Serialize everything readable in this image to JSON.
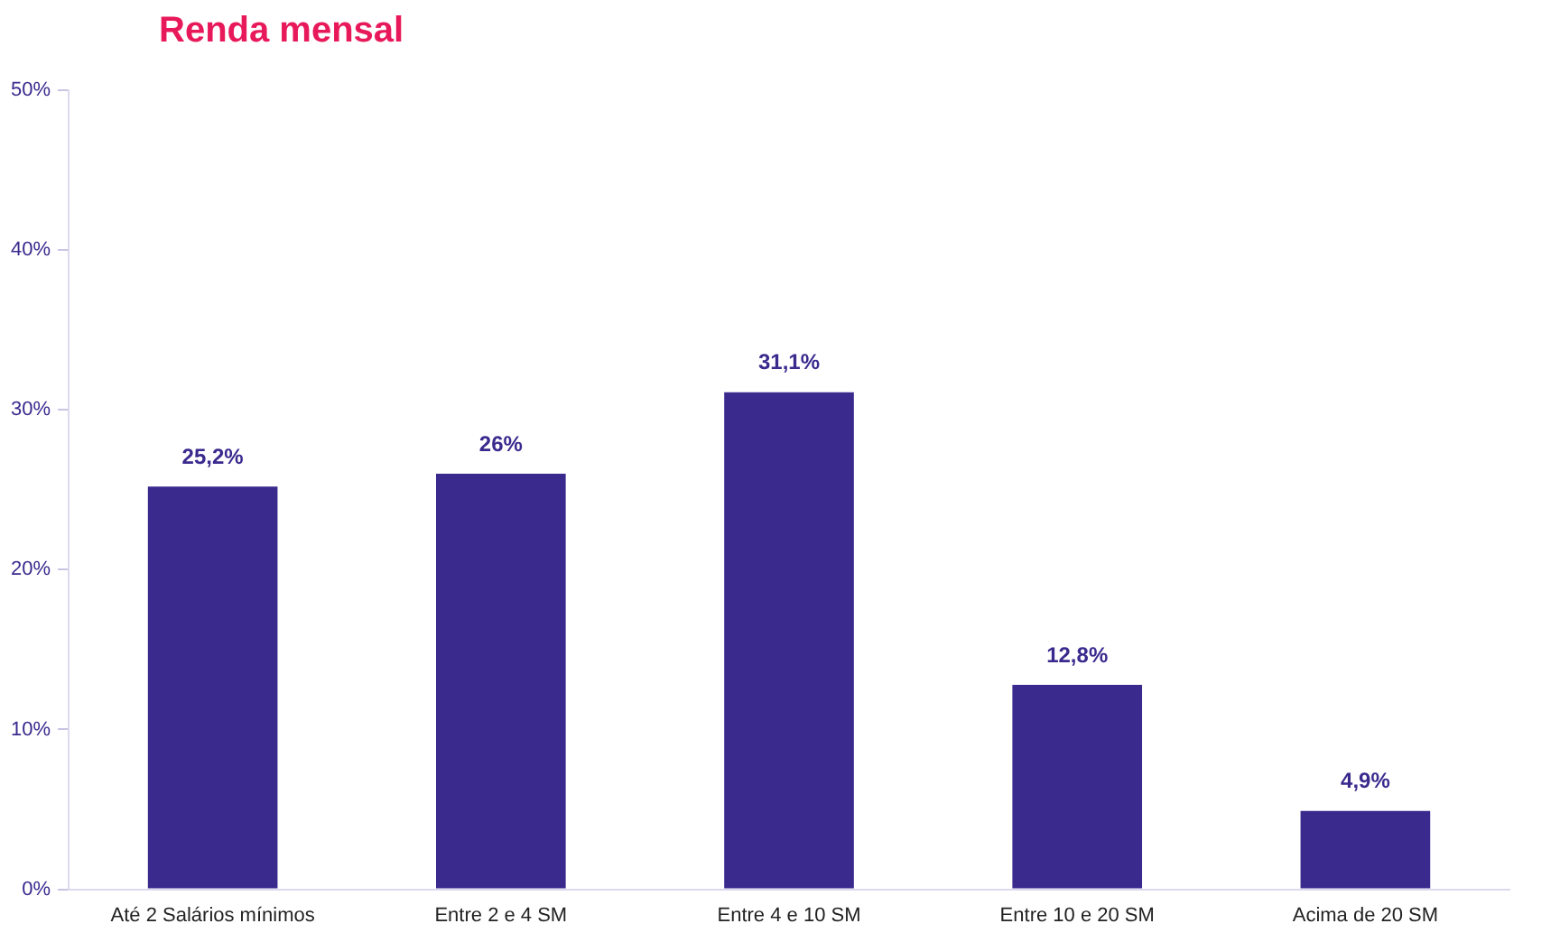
{
  "chart_data": {
    "type": "bar",
    "title": "Renda mensal",
    "categories": [
      "Até 2 Salários mínimos",
      "Entre 2 e 4 SM",
      "Entre 4 e 10 SM",
      "Entre 10 e 20 SM",
      "Acima de 20 SM"
    ],
    "values": [
      25.2,
      26,
      31.1,
      12.8,
      4.9
    ],
    "color": "#3a2a8e",
    "value_labels": [
      "25,2%",
      "26%",
      "31,1%",
      "12,8%",
      "4,9%"
    ],
    "ylim": [
      0,
      50
    ],
    "yticks": [
      {
        "value": 0,
        "label": "0%"
      },
      {
        "value": 10,
        "label": "10%"
      },
      {
        "value": 20,
        "label": "20%"
      },
      {
        "value": 30,
        "label": "30%"
      },
      {
        "value": 40,
        "label": "40%"
      },
      {
        "value": 50,
        "label": "50%"
      }
    ],
    "grid": false,
    "legend": false
  }
}
